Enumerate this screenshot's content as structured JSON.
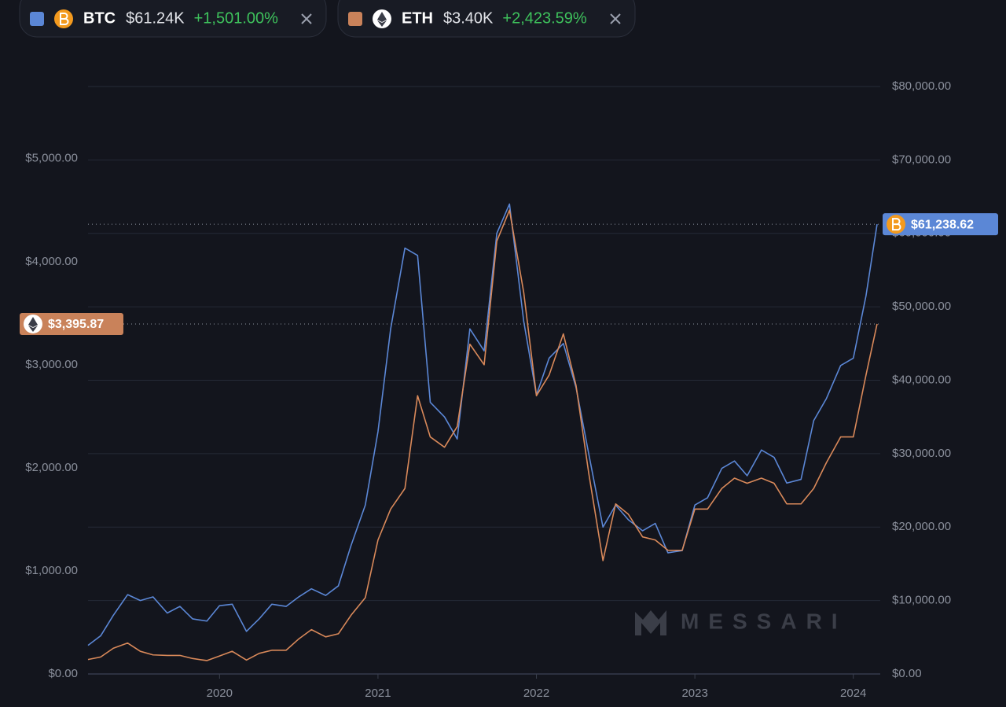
{
  "chart_data": {
    "type": "line",
    "watermark": "MESSARI",
    "x": [
      2019.17,
      2019.25,
      2019.33,
      2019.42,
      2019.5,
      2019.58,
      2019.67,
      2019.75,
      2019.83,
      2019.92,
      2020.0,
      2020.08,
      2020.17,
      2020.25,
      2020.33,
      2020.42,
      2020.5,
      2020.58,
      2020.67,
      2020.75,
      2020.83,
      2020.92,
      2021.0,
      2021.08,
      2021.17,
      2021.25,
      2021.33,
      2021.42,
      2021.5,
      2021.58,
      2021.67,
      2021.75,
      2021.83,
      2021.92,
      2022.0,
      2022.08,
      2022.17,
      2022.25,
      2022.33,
      2022.42,
      2022.5,
      2022.58,
      2022.67,
      2022.75,
      2022.83,
      2022.92,
      2023.0,
      2023.08,
      2023.17,
      2023.25,
      2023.33,
      2023.42,
      2023.5,
      2023.58,
      2023.67,
      2023.75,
      2023.83,
      2023.92,
      2024.0,
      2024.08,
      2024.15
    ],
    "xlim": [
      2019.17,
      2024.17
    ],
    "xticks": [
      2020,
      2021,
      2022,
      2023,
      2024
    ],
    "ylim": [
      0,
      5700
    ],
    "yticks": [
      {
        "value": 0,
        "label": "$0.00"
      },
      {
        "value": 1000,
        "label": "$1,000.00"
      },
      {
        "value": 2000,
        "label": "$2,000.00"
      },
      {
        "value": 3000,
        "label": "$3,000.00"
      },
      {
        "value": 4000,
        "label": "$4,000.00"
      },
      {
        "value": 5000,
        "label": "$5,000.00"
      }
    ],
    "y2lim": [
      0,
      80000
    ],
    "y2ticks": [
      {
        "value": 0,
        "label": "$0.00"
      },
      {
        "value": 10000,
        "label": "$10,000.00"
      },
      {
        "value": 20000,
        "label": "$20,000.00"
      },
      {
        "value": 30000,
        "label": "$30,000.00"
      },
      {
        "value": 40000,
        "label": "$40,000.00"
      },
      {
        "value": 50000,
        "label": "$50,000.00"
      },
      {
        "value": 60000,
        "label": "$60,000.00"
      },
      {
        "value": 70000,
        "label": "$70,000.00"
      },
      {
        "value": 80000,
        "label": "$80,000.00"
      }
    ],
    "grid": true,
    "series": [
      {
        "name": "BTC",
        "color": "#5b87d6",
        "axis": "y2",
        "price_label": "$61.24K",
        "change_label": "+1,501.00%",
        "last_label": "$61,238.62",
        "values": [
          3900,
          5200,
          8000,
          10800,
          10000,
          10500,
          8300,
          9200,
          7500,
          7200,
          9300,
          9500,
          5800,
          7500,
          9500,
          9200,
          10500,
          11600,
          10700,
          12000,
          17500,
          23000,
          33000,
          47000,
          58000,
          57000,
          37000,
          35000,
          32000,
          47000,
          44000,
          60000,
          64000,
          48000,
          38000,
          43000,
          45000,
          39000,
          30000,
          20000,
          23000,
          21000,
          19500,
          20500,
          16500,
          16800,
          23000,
          24000,
          28000,
          29000,
          27000,
          30500,
          29500,
          26000,
          26500,
          34500,
          37500,
          42000,
          43000,
          51500,
          61238.62
        ]
      },
      {
        "name": "ETH",
        "color": "#d9895a",
        "price_label": "$3.40K",
        "change_label": "+2,423.59%",
        "last_label": "$3,395.87",
        "values": [
          140,
          165,
          250,
          300,
          220,
          185,
          180,
          180,
          150,
          130,
          175,
          220,
          135,
          200,
          230,
          230,
          340,
          430,
          360,
          390,
          570,
          740,
          1300,
          1600,
          1800,
          2700,
          2300,
          2200,
          2400,
          3200,
          3000,
          4200,
          4500,
          3700,
          2700,
          2900,
          3300,
          2800,
          1950,
          1100,
          1650,
          1550,
          1330,
          1300,
          1200,
          1200,
          1600,
          1600,
          1800,
          1900,
          1850,
          1900,
          1850,
          1650,
          1650,
          1800,
          2050,
          2300,
          2300,
          2900,
          3395.87
        ]
      }
    ]
  }
}
